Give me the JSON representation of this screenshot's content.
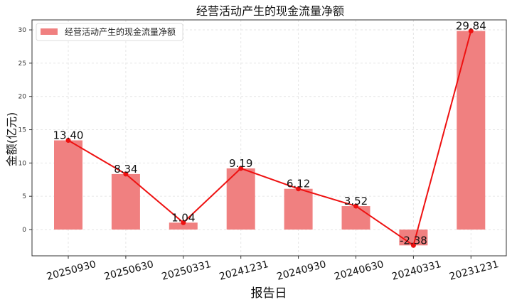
{
  "chart_data": {
    "type": "bar",
    "title": "经营活动产生的现金流量净额",
    "xlabel": "报告日",
    "ylabel": "金额(亿元)",
    "categories": [
      "20250930",
      "20250630",
      "20250331",
      "20241231",
      "20240930",
      "20240630",
      "20240331",
      "20231231"
    ],
    "series": [
      {
        "name": "经营活动产生的现金流量净额",
        "values": [
          13.4,
          8.34,
          1.04,
          9.19,
          6.12,
          3.52,
          -2.38,
          29.84
        ]
      }
    ],
    "data_labels": [
      "13.40",
      "8.34",
      "1.04",
      "9.19",
      "6.12",
      "3.52",
      "-2.38",
      "29.84"
    ],
    "ylim": [
      -3.95,
      31.5
    ],
    "yticks": [
      0,
      5,
      10,
      15,
      20,
      25,
      30
    ],
    "grid": true,
    "legend": "top-left",
    "colors": {
      "bar": "#f08080",
      "line": "#ee1111"
    }
  }
}
